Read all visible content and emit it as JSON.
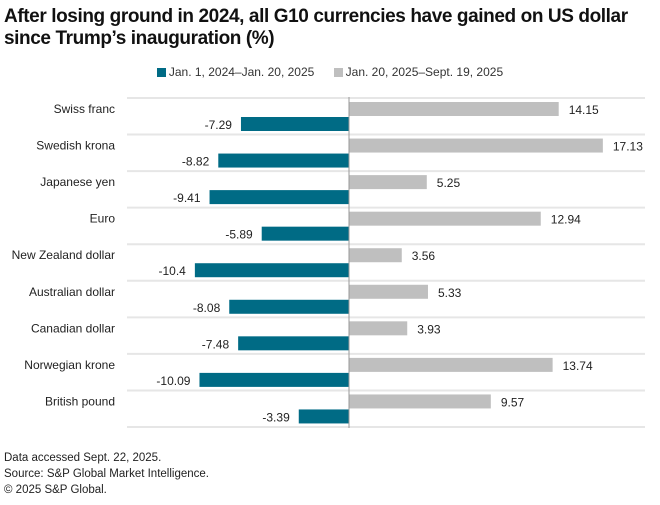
{
  "chart_data": {
    "type": "bar",
    "orientation": "horizontal",
    "title": "After losing ground in 2024, all G10 currencies have gained on US dollar since Trump’s inauguration (%)",
    "xlabel": "",
    "ylabel": "",
    "grid": true,
    "legend_position": "top-center",
    "categories": [
      "Swiss franc",
      "Swedish krona",
      "Japanese yen",
      "Euro",
      "New Zealand dollar",
      "Australian dollar",
      "Canadian dollar",
      "Norwegian krone",
      "British pound"
    ],
    "series": [
      {
        "name": "Jan. 20, 2025–Sept. 19, 2025",
        "color": "#bfbfbf",
        "values": [
          14.15,
          17.13,
          5.25,
          12.94,
          3.56,
          5.33,
          3.93,
          13.74,
          9.57
        ],
        "labels": [
          "14.15",
          "17.13",
          "5.25",
          "12.94",
          "3.56",
          "5.33",
          "3.93",
          "13.74",
          "9.57"
        ]
      },
      {
        "name": "Jan. 1, 2024–Jan. 20, 2025",
        "color": "#006b85",
        "values": [
          -7.29,
          -8.82,
          -9.41,
          -5.89,
          -10.4,
          -8.08,
          -7.48,
          -10.09,
          -3.39
        ],
        "labels": [
          "-7.29",
          "-8.82",
          "-9.41",
          "-5.89",
          "-10.4",
          "-8.08",
          "-7.48",
          "-10.09",
          "-3.39"
        ]
      }
    ],
    "xlim": [
      -12.5,
      20
    ]
  },
  "legend": [
    {
      "label": "Jan. 1, 2024–Jan. 20, 2025",
      "color": "#006b85"
    },
    {
      "label": "Jan. 20, 2025–Sept. 19, 2025",
      "color": "#bfbfbf"
    }
  ],
  "footer": {
    "line1": "Data accessed Sept. 22, 2025.",
    "line2": "Source: S&P Global Market Intelligence.",
    "line3": "© 2025 S&P Global."
  }
}
